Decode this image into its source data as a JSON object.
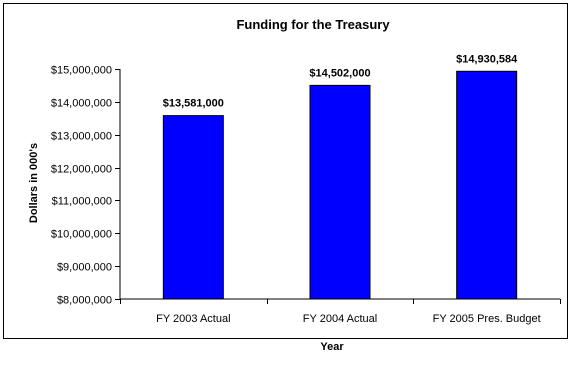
{
  "chart_data": {
    "type": "bar",
    "title": "Funding for the Treasury",
    "xlabel": "Year",
    "ylabel": "Dollars in 000's",
    "categories": [
      "FY 2003 Actual",
      "FY 2004 Actual",
      "FY 2005 Pres. Budget"
    ],
    "values": [
      13581000,
      14502000,
      14930584
    ],
    "data_labels": [
      "$13,581,000",
      "$14,502,000",
      "$14,930,584"
    ],
    "ylim": [
      8000000,
      15000000
    ],
    "yticks": [
      8000000,
      9000000,
      10000000,
      11000000,
      12000000,
      13000000,
      14000000,
      15000000
    ],
    "ytick_labels": [
      "$8,000,000",
      "$9,000,000",
      "$10,000,000",
      "$11,000,000",
      "$12,000,000",
      "$13,000,000",
      "$14,000,000",
      "$15,000,000"
    ],
    "grid": false,
    "legend": "none",
    "colors": {
      "bar": "#0000FF",
      "bar_stroke": "#000000"
    }
  }
}
